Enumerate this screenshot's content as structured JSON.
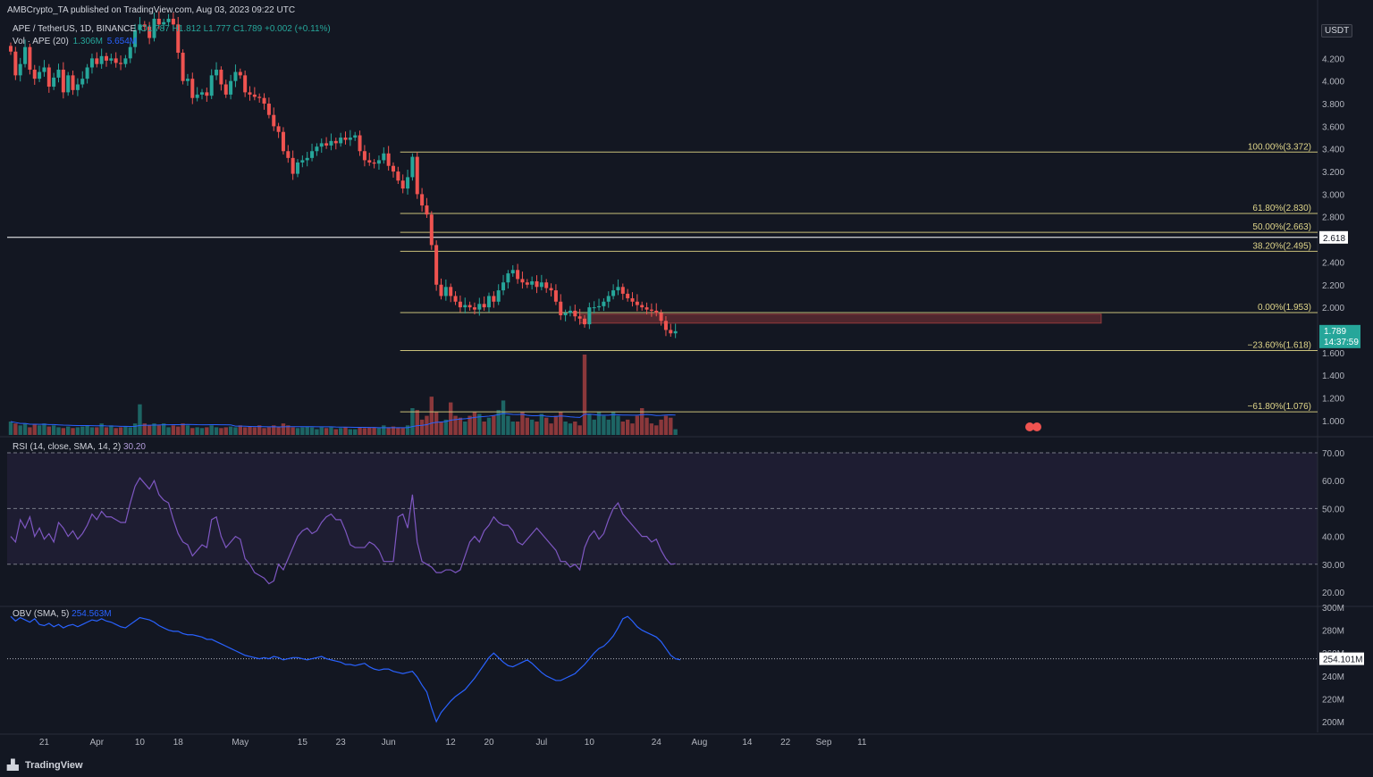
{
  "header": {
    "published": "AMBCrypto_TA published on TradingView.com, Aug 03, 2023 09:22 UTC",
    "symbol": "APE / TetherUS, 1D, BINANCE",
    "ohlc": "O1.787 H1.812 L1.777 C1.789 +0.002 (+0.11%)",
    "volume": "Vol · APE (20)",
    "volume_value": "1.306M",
    "volume_ma": "5.654M"
  },
  "currency_button": "USDT",
  "price_axis": [
    "4.200",
    "4.000",
    "3.800",
    "3.600",
    "3.400",
    "3.200",
    "3.000",
    "2.800",
    "2.600",
    "2.400",
    "2.200",
    "2.000",
    "1.800",
    "1.600",
    "1.400",
    "1.200",
    "1.000"
  ],
  "price_label": "1.789",
  "countdown": "14:37:59",
  "level_label": "2.618",
  "fib_levels": [
    {
      "label": "100.00%(3.372)",
      "price": 3.372
    },
    {
      "label": "61.80%(2.830)",
      "price": 2.83
    },
    {
      "label": "50.00%(2.663)",
      "price": 2.663
    },
    {
      "label": "38.20%(2.495)",
      "price": 2.495
    },
    {
      "label": "0.00%(1.953)",
      "price": 1.953
    },
    {
      "label": "−23.60%(1.618)",
      "price": 1.618
    },
    {
      "label": "−61.80%(1.076)",
      "price": 1.076
    }
  ],
  "rsi": {
    "label": "RSI (14, close, SMA, 14, 2)",
    "value": "30.20",
    "axis": [
      "70.00",
      "60.00",
      "50.00",
      "40.00",
      "30.00",
      "20.00"
    ]
  },
  "obv": {
    "label": "OBV (SMA, 5)",
    "value": "254.563M",
    "current_tag": "254.101M",
    "axis": [
      "300M",
      "280M",
      "260M",
      "240M",
      "220M",
      "200M"
    ]
  },
  "time_axis": [
    "21",
    "Apr",
    "10",
    "18",
    "May",
    "15",
    "23",
    "Jun",
    "12",
    "20",
    "Jul",
    "10",
    "24",
    "Aug",
    "14",
    "22",
    "Sep",
    "11"
  ],
  "footer_brand": "TradingView",
  "colors": {
    "bg": "#131722",
    "up": "#26a69a",
    "down": "#ef5350",
    "fib": "#c9c07a",
    "rsi": "#7e57c2",
    "obv": "#2962ff",
    "vol_ma": "#2962ff"
  },
  "chart_data": {
    "type": "candlestick",
    "interval": "1D",
    "x_start": "2023-03-14",
    "x_end": "2023-08-03",
    "price_close": [
      4.26,
      4.05,
      4.15,
      4.3,
      4.1,
      4.02,
      4.08,
      4.12,
      3.95,
      4.03,
      4.1,
      3.9,
      4.05,
      3.92,
      3.97,
      4.02,
      4.12,
      4.2,
      4.15,
      4.22,
      4.18,
      4.2,
      4.16,
      4.15,
      4.2,
      4.3,
      4.45,
      4.5,
      4.48,
      4.38,
      4.55,
      4.5,
      4.52,
      4.55,
      4.5,
      4.25,
      4.0,
      4.02,
      3.85,
      3.88,
      3.9,
      3.87,
      4.05,
      4.1,
      3.97,
      3.88,
      4.0,
      4.08,
      4.05,
      3.9,
      3.88,
      3.86,
      3.85,
      3.8,
      3.7,
      3.6,
      3.55,
      3.38,
      3.32,
      3.18,
      3.28,
      3.3,
      3.32,
      3.38,
      3.42,
      3.45,
      3.43,
      3.47,
      3.45,
      3.5,
      3.48,
      3.5,
      3.52,
      3.38,
      3.3,
      3.28,
      3.27,
      3.3,
      3.36,
      3.25,
      3.2,
      3.12,
      3.05,
      3.15,
      3.33,
      3.0,
      2.9,
      2.82,
      2.55,
      2.2,
      2.1,
      2.18,
      2.1,
      2.05,
      2.0,
      2.02,
      2.0,
      1.98,
      2.03,
      2.0,
      2.1,
      2.05,
      2.15,
      2.22,
      2.3,
      2.33,
      2.25,
      2.22,
      2.2,
      2.23,
      2.18,
      2.22,
      2.17,
      2.15,
      2.05,
      1.93,
      1.95,
      1.97,
      1.92,
      1.9,
      1.85,
      2.0,
      2.0,
      2.01,
      2.05,
      2.1,
      2.15,
      2.18,
      2.12,
      2.08,
      2.05,
      2.02,
      2.0,
      1.98,
      1.97,
      1.95,
      1.88,
      1.8,
      1.77,
      1.789
    ],
    "volume_relative": [
      0.35,
      0.3,
      0.25,
      0.3,
      0.2,
      0.28,
      0.25,
      0.3,
      0.22,
      0.25,
      0.2,
      0.18,
      0.22,
      0.18,
      0.2,
      0.22,
      0.25,
      0.2,
      0.2,
      0.3,
      0.2,
      0.25,
      0.18,
      0.2,
      0.22,
      0.2,
      0.3,
      0.8,
      0.3,
      0.25,
      0.3,
      0.25,
      0.3,
      0.2,
      0.25,
      0.22,
      0.3,
      0.25,
      0.18,
      0.2,
      0.18,
      0.2,
      0.25,
      0.2,
      0.18,
      0.2,
      0.22,
      0.2,
      0.25,
      0.2,
      0.22,
      0.2,
      0.25,
      0.18,
      0.2,
      0.25,
      0.2,
      0.3,
      0.25,
      0.2,
      0.18,
      0.2,
      0.22,
      0.2,
      0.15,
      0.2,
      0.18,
      0.2,
      0.15,
      0.18,
      0.2,
      0.15,
      0.15,
      0.2,
      0.18,
      0.2,
      0.2,
      0.18,
      0.25,
      0.2,
      0.22,
      0.2,
      0.18,
      0.25,
      0.7,
      0.65,
      0.4,
      0.5,
      1.0,
      0.6,
      0.35,
      0.4,
      0.85,
      0.5,
      0.45,
      0.35,
      0.5,
      0.6,
      0.55,
      0.35,
      0.45,
      0.5,
      0.65,
      0.9,
      0.5,
      0.35,
      0.35,
      0.6,
      0.45,
      0.4,
      0.35,
      0.55,
      0.45,
      0.3,
      0.5,
      0.6,
      0.35,
      0.3,
      0.35,
      0.25,
      2.1,
      0.55,
      0.4,
      0.6,
      0.5,
      0.4,
      0.6,
      0.5,
      0.35,
      0.4,
      0.3,
      0.5,
      0.7,
      0.45,
      0.3,
      0.25,
      0.4,
      0.5,
      0.45,
      0.15
    ],
    "rsi": [
      40,
      38,
      46,
      43,
      47,
      40,
      43,
      39,
      41,
      38,
      45,
      43,
      40,
      42,
      39,
      41,
      44,
      48,
      46,
      49,
      47,
      47,
      46,
      45,
      45,
      52,
      58,
      61,
      59,
      57,
      60,
      55,
      53,
      52,
      46,
      41,
      38,
      37,
      33,
      35,
      37,
      36,
      46,
      47,
      40,
      36,
      38,
      40,
      39,
      32,
      30,
      27,
      26,
      25,
      23,
      24,
      30,
      28,
      32,
      36,
      40,
      42,
      43,
      41,
      42,
      45,
      47,
      48,
      46,
      46,
      42,
      37,
      36,
      36,
      36,
      38,
      37,
      35,
      31,
      31,
      31,
      47,
      48,
      43,
      55,
      38,
      31,
      30,
      29,
      27,
      27,
      28,
      28,
      27,
      28,
      33,
      38,
      40,
      38,
      42,
      44,
      47,
      45,
      44,
      44,
      42,
      38,
      37,
      39,
      41,
      43,
      41,
      39,
      37,
      35,
      31,
      31,
      29,
      30,
      28,
      36,
      40,
      42,
      39,
      41,
      46,
      50,
      52,
      48,
      46,
      44,
      42,
      40,
      40,
      38,
      39,
      35,
      32,
      30,
      30.2
    ],
    "rsi_levels": [
      70,
      50,
      30
    ],
    "obv_m": [
      292,
      288,
      291,
      289,
      287,
      290,
      285,
      284,
      286,
      283,
      285,
      282,
      284,
      285,
      283,
      285,
      287,
      289,
      288,
      290,
      288,
      287,
      285,
      283,
      282,
      285,
      288,
      291,
      290,
      289,
      287,
      284,
      282,
      280,
      279,
      279,
      277,
      276,
      276,
      275,
      274,
      272,
      272,
      270,
      268,
      266,
      264,
      262,
      260,
      258,
      257,
      256,
      255,
      256,
      255,
      257,
      256,
      254,
      255,
      256,
      256,
      255,
      254,
      255,
      256,
      257,
      255,
      254,
      253,
      252,
      250,
      250,
      249,
      250,
      251,
      248,
      246,
      245,
      246,
      246,
      244,
      243,
      242,
      243,
      244,
      239,
      232,
      226,
      212,
      200,
      208,
      213,
      218,
      222,
      225,
      228,
      233,
      238,
      244,
      250,
      256,
      260,
      256,
      252,
      249,
      248,
      250,
      252,
      254,
      251,
      247,
      243,
      240,
      238,
      236,
      236,
      238,
      240,
      242,
      246,
      250,
      255,
      260,
      264,
      266,
      270,
      275,
      282,
      290,
      292,
      288,
      283,
      280,
      278,
      276,
      274,
      270,
      264,
      258,
      255,
      254.1
    ],
    "fib_prices": [
      3.372,
      2.83,
      2.663,
      2.495,
      1.953,
      1.618,
      1.076
    ],
    "horizontal_level": 2.618,
    "supply_zone": [
      1.86,
      1.94
    ]
  }
}
